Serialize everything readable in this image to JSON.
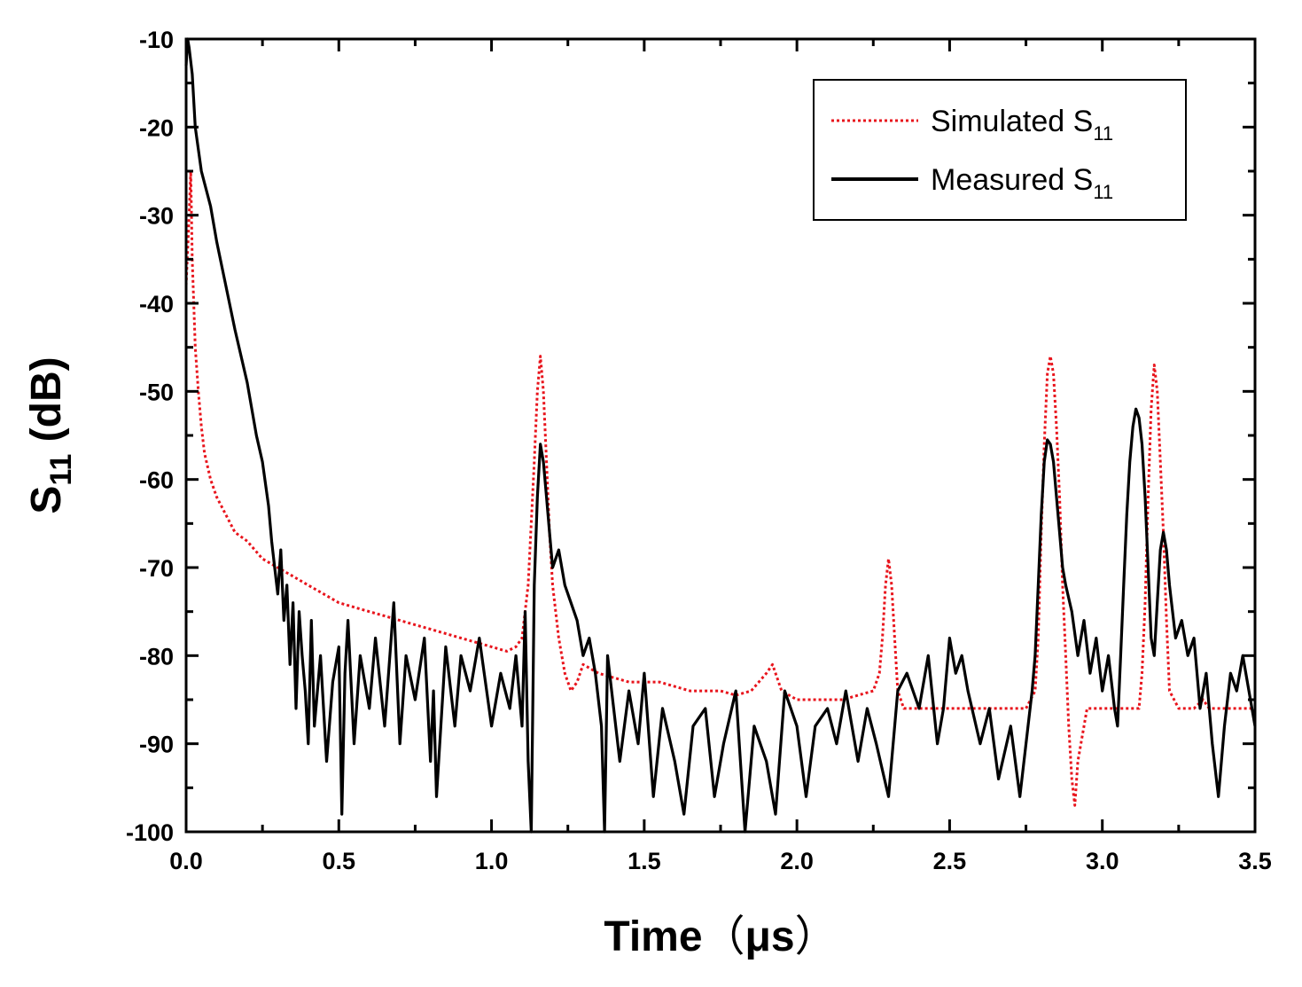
{
  "chart_data": {
    "type": "line",
    "xlabel": "Time（μs）",
    "xlabel_parts": {
      "main": "Time",
      "open": "（",
      "unit": "μs",
      "close": "）"
    },
    "ylabel": "S11 (dB)",
    "ylabel_parts": {
      "symbol": "S",
      "subscript": "11",
      "unit": " (dB)"
    },
    "xlim": [
      0.0,
      3.5
    ],
    "ylim": [
      -100,
      -10
    ],
    "x_ticks": [
      0.0,
      0.5,
      1.0,
      1.5,
      2.0,
      2.5,
      3.0,
      3.5
    ],
    "x_tick_labels": [
      "0.0",
      "0.5",
      "1.0",
      "1.5",
      "2.0",
      "2.5",
      "3.0",
      "3.5"
    ],
    "y_ticks": [
      -100,
      -90,
      -80,
      -70,
      -60,
      -50,
      -40,
      -30,
      -20,
      -10
    ],
    "y_tick_labels": [
      "-100",
      "-90",
      "-80",
      "-70",
      "-60",
      "-50",
      "-40",
      "-30",
      "-20",
      "-10"
    ],
    "grid": false,
    "legend_position": "top-right",
    "series": [
      {
        "name": "Simulated S11",
        "legend_text": "Simulated S",
        "legend_sub": "11",
        "color": "#e8141c",
        "style": "dotted",
        "x": [
          0.0,
          0.01,
          0.015,
          0.02,
          0.03,
          0.04,
          0.05,
          0.06,
          0.08,
          0.1,
          0.13,
          0.16,
          0.2,
          0.25,
          0.3,
          0.35,
          0.4,
          0.45,
          0.5,
          0.55,
          0.6,
          0.65,
          0.7,
          0.75,
          0.8,
          0.85,
          0.9,
          0.95,
          1.0,
          1.05,
          1.08,
          1.1,
          1.12,
          1.14,
          1.15,
          1.16,
          1.17,
          1.18,
          1.19,
          1.2,
          1.22,
          1.24,
          1.26,
          1.28,
          1.3,
          1.35,
          1.4,
          1.45,
          1.5,
          1.55,
          1.6,
          1.65,
          1.7,
          1.75,
          1.8,
          1.85,
          1.9,
          1.92,
          1.95,
          2.0,
          2.05,
          2.1,
          2.15,
          2.2,
          2.25,
          2.27,
          2.28,
          2.29,
          2.3,
          2.31,
          2.32,
          2.33,
          2.35,
          2.4,
          2.45,
          2.5,
          2.55,
          2.6,
          2.65,
          2.7,
          2.75,
          2.78,
          2.79,
          2.8,
          2.81,
          2.82,
          2.83,
          2.84,
          2.85,
          2.86,
          2.87,
          2.88,
          2.89,
          2.9,
          2.91,
          2.92,
          2.95,
          3.0,
          3.05,
          3.1,
          3.12,
          3.13,
          3.14,
          3.15,
          3.16,
          3.17,
          3.18,
          3.19,
          3.2,
          3.21,
          3.22,
          3.25,
          3.28,
          3.3,
          3.33,
          3.35,
          3.38,
          3.4,
          3.43,
          3.45,
          3.48,
          3.5
        ],
        "y": [
          -38,
          -30,
          -25,
          -35,
          -45,
          -50,
          -54,
          -57,
          -60,
          -62,
          -64,
          -66,
          -67,
          -69,
          -70,
          -71,
          -72,
          -73,
          -74,
          -74.5,
          -75,
          -75.5,
          -76,
          -76.5,
          -77,
          -77.5,
          -78,
          -78.5,
          -79,
          -79.5,
          -79,
          -78,
          -72,
          -58,
          -50,
          -46,
          -50,
          -58,
          -66,
          -72,
          -78,
          -82,
          -84,
          -83,
          -81,
          -82,
          -82.5,
          -83,
          -83,
          -83,
          -83.5,
          -84,
          -84,
          -84,
          -84.5,
          -84,
          -82,
          -81,
          -84,
          -85,
          -85,
          -85,
          -85,
          -84.5,
          -84,
          -82,
          -78,
          -72,
          -69,
          -72,
          -78,
          -84,
          -86,
          -86,
          -86,
          -86,
          -86,
          -86,
          -86,
          -86,
          -86,
          -84,
          -78,
          -66,
          -56,
          -48,
          -46,
          -48,
          -54,
          -62,
          -72,
          -80,
          -88,
          -94,
          -97,
          -92,
          -86,
          -86,
          -86,
          -86,
          -86,
          -82,
          -74,
          -62,
          -52,
          -47,
          -50,
          -58,
          -66,
          -76,
          -84,
          -86,
          -86,
          -86,
          -85,
          -86,
          -86,
          -86,
          -86,
          -86,
          -86,
          -86
        ]
      },
      {
        "name": "Measured S11",
        "legend_text": "Measured S",
        "legend_sub": "11",
        "color": "#000000",
        "style": "solid",
        "x": [
          0.0,
          0.005,
          0.01,
          0.02,
          0.03,
          0.05,
          0.08,
          0.1,
          0.13,
          0.16,
          0.2,
          0.23,
          0.25,
          0.27,
          0.28,
          0.29,
          0.3,
          0.31,
          0.32,
          0.33,
          0.34,
          0.35,
          0.36,
          0.37,
          0.38,
          0.39,
          0.4,
          0.41,
          0.42,
          0.44,
          0.46,
          0.48,
          0.5,
          0.51,
          0.52,
          0.53,
          0.55,
          0.57,
          0.6,
          0.62,
          0.65,
          0.68,
          0.7,
          0.72,
          0.75,
          0.78,
          0.8,
          0.81,
          0.82,
          0.85,
          0.88,
          0.9,
          0.93,
          0.96,
          1.0,
          1.03,
          1.06,
          1.08,
          1.1,
          1.11,
          1.12,
          1.13,
          1.14,
          1.15,
          1.16,
          1.17,
          1.18,
          1.19,
          1.2,
          1.22,
          1.24,
          1.26,
          1.28,
          1.3,
          1.32,
          1.34,
          1.36,
          1.37,
          1.38,
          1.4,
          1.42,
          1.45,
          1.48,
          1.5,
          1.53,
          1.56,
          1.6,
          1.63,
          1.66,
          1.7,
          1.73,
          1.76,
          1.8,
          1.83,
          1.86,
          1.9,
          1.93,
          1.96,
          2.0,
          2.03,
          2.06,
          2.1,
          2.13,
          2.16,
          2.2,
          2.23,
          2.26,
          2.3,
          2.33,
          2.36,
          2.4,
          2.43,
          2.46,
          2.48,
          2.5,
          2.52,
          2.54,
          2.56,
          2.6,
          2.63,
          2.66,
          2.7,
          2.73,
          2.75,
          2.77,
          2.78,
          2.79,
          2.8,
          2.81,
          2.82,
          2.83,
          2.84,
          2.85,
          2.86,
          2.87,
          2.88,
          2.9,
          2.92,
          2.94,
          2.96,
          2.98,
          3.0,
          3.02,
          3.04,
          3.05,
          3.06,
          3.07,
          3.08,
          3.09,
          3.1,
          3.11,
          3.12,
          3.13,
          3.14,
          3.15,
          3.16,
          3.17,
          3.18,
          3.19,
          3.2,
          3.21,
          3.22,
          3.24,
          3.26,
          3.28,
          3.3,
          3.32,
          3.34,
          3.36,
          3.38,
          3.4,
          3.42,
          3.44,
          3.46,
          3.48,
          3.5
        ],
        "y": [
          -13,
          -10,
          -11,
          -14,
          -20,
          -25,
          -29,
          -33,
          -38,
          -43,
          -49,
          -55,
          -58,
          -63,
          -67,
          -70,
          -73,
          -68,
          -76,
          -72,
          -81,
          -74,
          -86,
          -75,
          -80,
          -84,
          -90,
          -76,
          -88,
          -80,
          -92,
          -83,
          -79,
          -98,
          -82,
          -76,
          -90,
          -80,
          -86,
          -78,
          -88,
          -74,
          -90,
          -80,
          -85,
          -78,
          -92,
          -84,
          -96,
          -79,
          -88,
          -80,
          -84,
          -78,
          -88,
          -82,
          -86,
          -80,
          -88,
          -75,
          -92,
          -100,
          -72,
          -62,
          -56,
          -58,
          -62,
          -66,
          -70,
          -68,
          -72,
          -74,
          -76,
          -80,
          -78,
          -82,
          -88,
          -100,
          -80,
          -86,
          -92,
          -84,
          -90,
          -82,
          -96,
          -86,
          -92,
          -98,
          -88,
          -86,
          -96,
          -90,
          -84,
          -100,
          -88,
          -92,
          -98,
          -84,
          -88,
          -96,
          -88,
          -86,
          -90,
          -84,
          -92,
          -86,
          -90,
          -96,
          -84,
          -82,
          -86,
          -80,
          -90,
          -86,
          -78,
          -82,
          -80,
          -84,
          -90,
          -86,
          -94,
          -88,
          -96,
          -90,
          -84,
          -80,
          -72,
          -64,
          -58,
          -55.5,
          -56,
          -58,
          -62,
          -66,
          -70,
          -72,
          -75,
          -80,
          -76,
          -82,
          -78,
          -84,
          -80,
          -86,
          -88,
          -80,
          -72,
          -64,
          -58,
          -54,
          -52,
          -53,
          -56,
          -62,
          -70,
          -78,
          -80,
          -74,
          -68,
          -66,
          -68,
          -72,
          -78,
          -76,
          -80,
          -78,
          -86,
          -82,
          -90,
          -96,
          -88,
          -82,
          -84,
          -80,
          -84,
          -88
        ]
      }
    ]
  }
}
